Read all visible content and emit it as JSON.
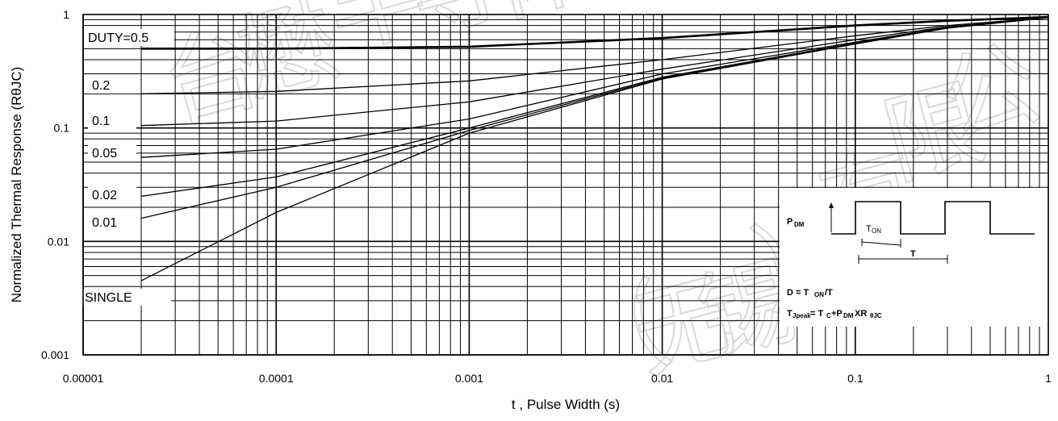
{
  "chart_data": {
    "type": "line",
    "title": "",
    "xlabel": "t , Pulse Width (s)",
    "ylabel": "Normalized Thermal Response (RθJC)",
    "xscale": "log",
    "yscale": "log",
    "xlim": [
      1e-05,
      1
    ],
    "ylim": [
      0.001,
      1
    ],
    "grid": true,
    "x_tick_labels": [
      "0.00001",
      "0.0001",
      "0.001",
      "0.01",
      "0.1",
      "1"
    ],
    "y_tick_labels": [
      "0.001",
      "0.01",
      "0.1",
      "1"
    ],
    "series": [
      {
        "name": "DUTY=0.5",
        "x": [
          2e-05,
          0.0001,
          0.001,
          0.01,
          0.1,
          0.3,
          1
        ],
        "y": [
          0.5,
          0.5,
          0.52,
          0.62,
          0.8,
          0.88,
          0.95
        ]
      },
      {
        "name": "0.2",
        "x": [
          2e-05,
          0.0001,
          0.001,
          0.01,
          0.1,
          0.3,
          1
        ],
        "y": [
          0.2,
          0.21,
          0.26,
          0.4,
          0.65,
          0.8,
          0.94
        ]
      },
      {
        "name": "0.1",
        "x": [
          2e-05,
          0.0001,
          0.001,
          0.01,
          0.1,
          0.3,
          1
        ],
        "y": [
          0.105,
          0.115,
          0.17,
          0.33,
          0.6,
          0.78,
          0.94
        ]
      },
      {
        "name": "0.05",
        "x": [
          2e-05,
          0.0001,
          0.001,
          0.01,
          0.1,
          0.3,
          1
        ],
        "y": [
          0.055,
          0.065,
          0.12,
          0.3,
          0.57,
          0.77,
          0.94
        ]
      },
      {
        "name": "0.02",
        "x": [
          2e-05,
          0.0001,
          0.001,
          0.01,
          0.1,
          0.3,
          1
        ],
        "y": [
          0.025,
          0.037,
          0.1,
          0.28,
          0.56,
          0.76,
          0.94
        ]
      },
      {
        "name": "0.01",
        "x": [
          2e-05,
          0.0001,
          0.001,
          0.01,
          0.1,
          0.3,
          1
        ],
        "y": [
          0.016,
          0.03,
          0.095,
          0.275,
          0.55,
          0.76,
          0.94
        ]
      },
      {
        "name": "SINGLE",
        "x": [
          2e-05,
          0.0001,
          0.001,
          0.01,
          0.1,
          0.3,
          1
        ],
        "y": [
          0.0045,
          0.018,
          0.09,
          0.27,
          0.55,
          0.76,
          0.94
        ]
      }
    ],
    "series_label_text": [
      "DUTY=0.5",
      "0.2",
      "0.1",
      "0.05",
      "0.02",
      "0.01",
      "SINGLE"
    ],
    "inset": {
      "pdm_label": "P",
      "pdm_sub": "DM",
      "ton_label": "T",
      "ton_sub": "ON",
      "t_label": "T",
      "formula1_a": "D = T",
      "formula1_sub": "ON",
      "formula1_b": "/T",
      "formula2_a": "T",
      "formula2_sub1": "Jpeak",
      "formula2_b": " = T",
      "formula2_sub2": "C",
      "formula2_c": "+P",
      "formula2_sub3": "DM",
      "formula2_d": "XR",
      "formula2_sub4": "θJC"
    }
  },
  "watermark": "台懋半导体（无锡）有限公司"
}
